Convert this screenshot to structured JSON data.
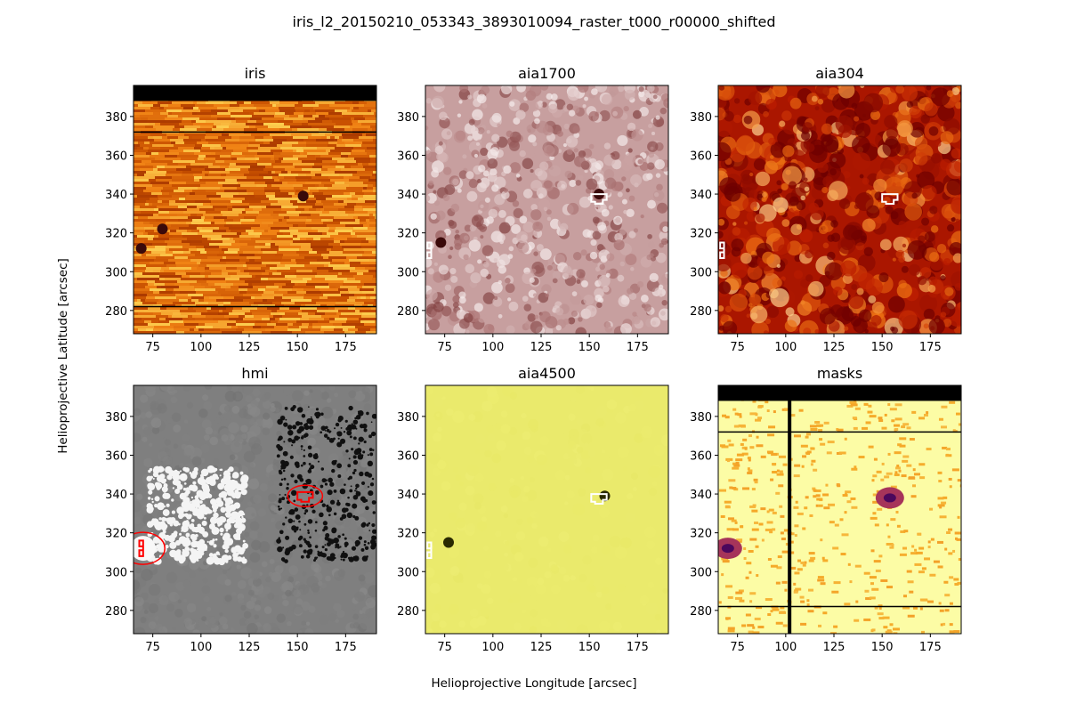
{
  "figure": {
    "suptitle": "iris_l2_20150210_053343_3893010094_raster_t000_r00000_shifted",
    "xlabel": "Helioprojective Longitude [arcsec]",
    "ylabel": "Helioprojective Latitude [arcsec]"
  },
  "chart_data": [
    {
      "type": "heatmap",
      "title": "iris",
      "colormap": "orange-hot",
      "xlim": [
        65,
        191
      ],
      "ylim": [
        268,
        396
      ],
      "xticks": [
        75,
        100,
        125,
        150,
        175
      ],
      "yticks": [
        280,
        300,
        320,
        340,
        360,
        380
      ],
      "no_data_band_y": [
        388,
        396
      ],
      "horizontal_lines_y": [
        372,
        282
      ],
      "dark_spots": [
        {
          "x": 153,
          "y": 339
        },
        {
          "x": 69,
          "y": 312
        },
        {
          "x": 80,
          "y": 322
        }
      ],
      "contours": []
    },
    {
      "type": "heatmap",
      "title": "aia1700",
      "colormap": "pinkish-brown",
      "xlim": [
        65,
        191
      ],
      "ylim": [
        268,
        396
      ],
      "xticks": [
        75,
        100,
        125,
        150,
        175
      ],
      "yticks": [
        280,
        300,
        320,
        340,
        360,
        380
      ],
      "dark_spots": [
        {
          "x": 155,
          "y": 340
        },
        {
          "x": 73,
          "y": 315
        }
      ],
      "contours": [
        {
          "color": "#ffffff",
          "center": [
            155,
            338
          ]
        },
        {
          "color": "#ffffff",
          "center": [
            68,
            311
          ]
        }
      ]
    },
    {
      "type": "heatmap",
      "title": "aia304",
      "colormap": "red-hot",
      "xlim": [
        65,
        191
      ],
      "ylim": [
        268,
        396
      ],
      "xticks": [
        75,
        100,
        125,
        150,
        175
      ],
      "yticks": [
        280,
        300,
        320,
        340,
        360,
        380
      ],
      "contours": [
        {
          "color": "#ffffff",
          "center": [
            154,
            338
          ]
        },
        {
          "color": "#ffffff",
          "center": [
            68,
            311
          ]
        }
      ]
    },
    {
      "type": "heatmap",
      "title": "hmi",
      "colormap": "gray",
      "xlim": [
        65,
        191
      ],
      "ylim": [
        268,
        396
      ],
      "xticks": [
        75,
        100,
        125,
        150,
        175
      ],
      "yticks": [
        280,
        300,
        320,
        340,
        360,
        380
      ],
      "contours": [
        {
          "color": "#ff0000",
          "center": [
            154,
            339
          ]
        },
        {
          "color": "#ff0000",
          "center": [
            70,
            312
          ]
        }
      ]
    },
    {
      "type": "heatmap",
      "title": "aia4500",
      "colormap": "yellow",
      "xlim": [
        65,
        191
      ],
      "ylim": [
        268,
        396
      ],
      "xticks": [
        75,
        100,
        125,
        150,
        175
      ],
      "yticks": [
        280,
        300,
        320,
        340,
        360,
        380
      ],
      "dark_spots": [
        {
          "x": 158,
          "y": 339
        },
        {
          "x": 77,
          "y": 315
        }
      ],
      "contours": [
        {
          "color": "#ffffff",
          "center": [
            155,
            338
          ]
        },
        {
          "color": "#ffffff",
          "center": [
            68,
            311
          ]
        }
      ]
    },
    {
      "type": "heatmap",
      "title": "masks",
      "colormap": "inferno-yellow",
      "xlim": [
        65,
        191
      ],
      "ylim": [
        268,
        396
      ],
      "xticks": [
        75,
        100,
        125,
        150,
        175
      ],
      "yticks": [
        280,
        300,
        320,
        340,
        360,
        380
      ],
      "no_data_band_y": [
        388,
        396
      ],
      "horizontal_lines_y": [
        372,
        282
      ],
      "vertical_line_x": [
        102
      ],
      "blobs": [
        {
          "x": 154,
          "y": 338
        },
        {
          "x": 70,
          "y": 312
        }
      ],
      "contours": []
    }
  ]
}
